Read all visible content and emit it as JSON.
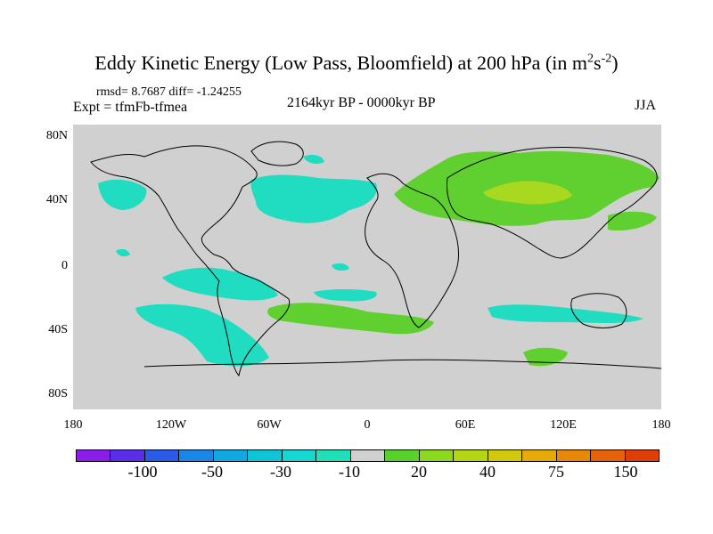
{
  "title": {
    "main": "Eddy Kinetic Energy (Low Pass, Bloomfield) at 200 hPa (in m",
    "sup1": "2",
    "mid": "s",
    "sup2": "-2",
    "end": ")"
  },
  "stats": "rmsd= 8.7687 diff= -1.24255",
  "expt": "Expt = tfmFb-tfmea",
  "period": "2164kyr BP - 0000kyr BP",
  "season": "JJA",
  "map": {
    "lat_labels": [
      "80N",
      "40N",
      "0",
      "40S",
      "80S"
    ],
    "lon_labels": [
      "180",
      "120W",
      "60W",
      "0",
      "60E",
      "120E",
      "180"
    ],
    "fill_colors": {
      "ocean": "#d0d0d0",
      "teal": "#20dcc0",
      "lightgreen": "#60d030",
      "yellowgreen": "#a8d820"
    }
  },
  "colorbar": {
    "colors": [
      "#8a1ee8",
      "#5a2ee8",
      "#2a5ae8",
      "#1a86e8",
      "#12a8e0",
      "#10c4d8",
      "#14d8d0",
      "#20e0b8",
      "#d0d0d0",
      "#58d22a",
      "#8cd81e",
      "#b4d414",
      "#d2c80c",
      "#e4aa08",
      "#e88808",
      "#e66208",
      "#e03e08"
    ],
    "labels": [
      "-100",
      "-50",
      "-30",
      "-10",
      "20",
      "40",
      "75",
      "150"
    ]
  }
}
